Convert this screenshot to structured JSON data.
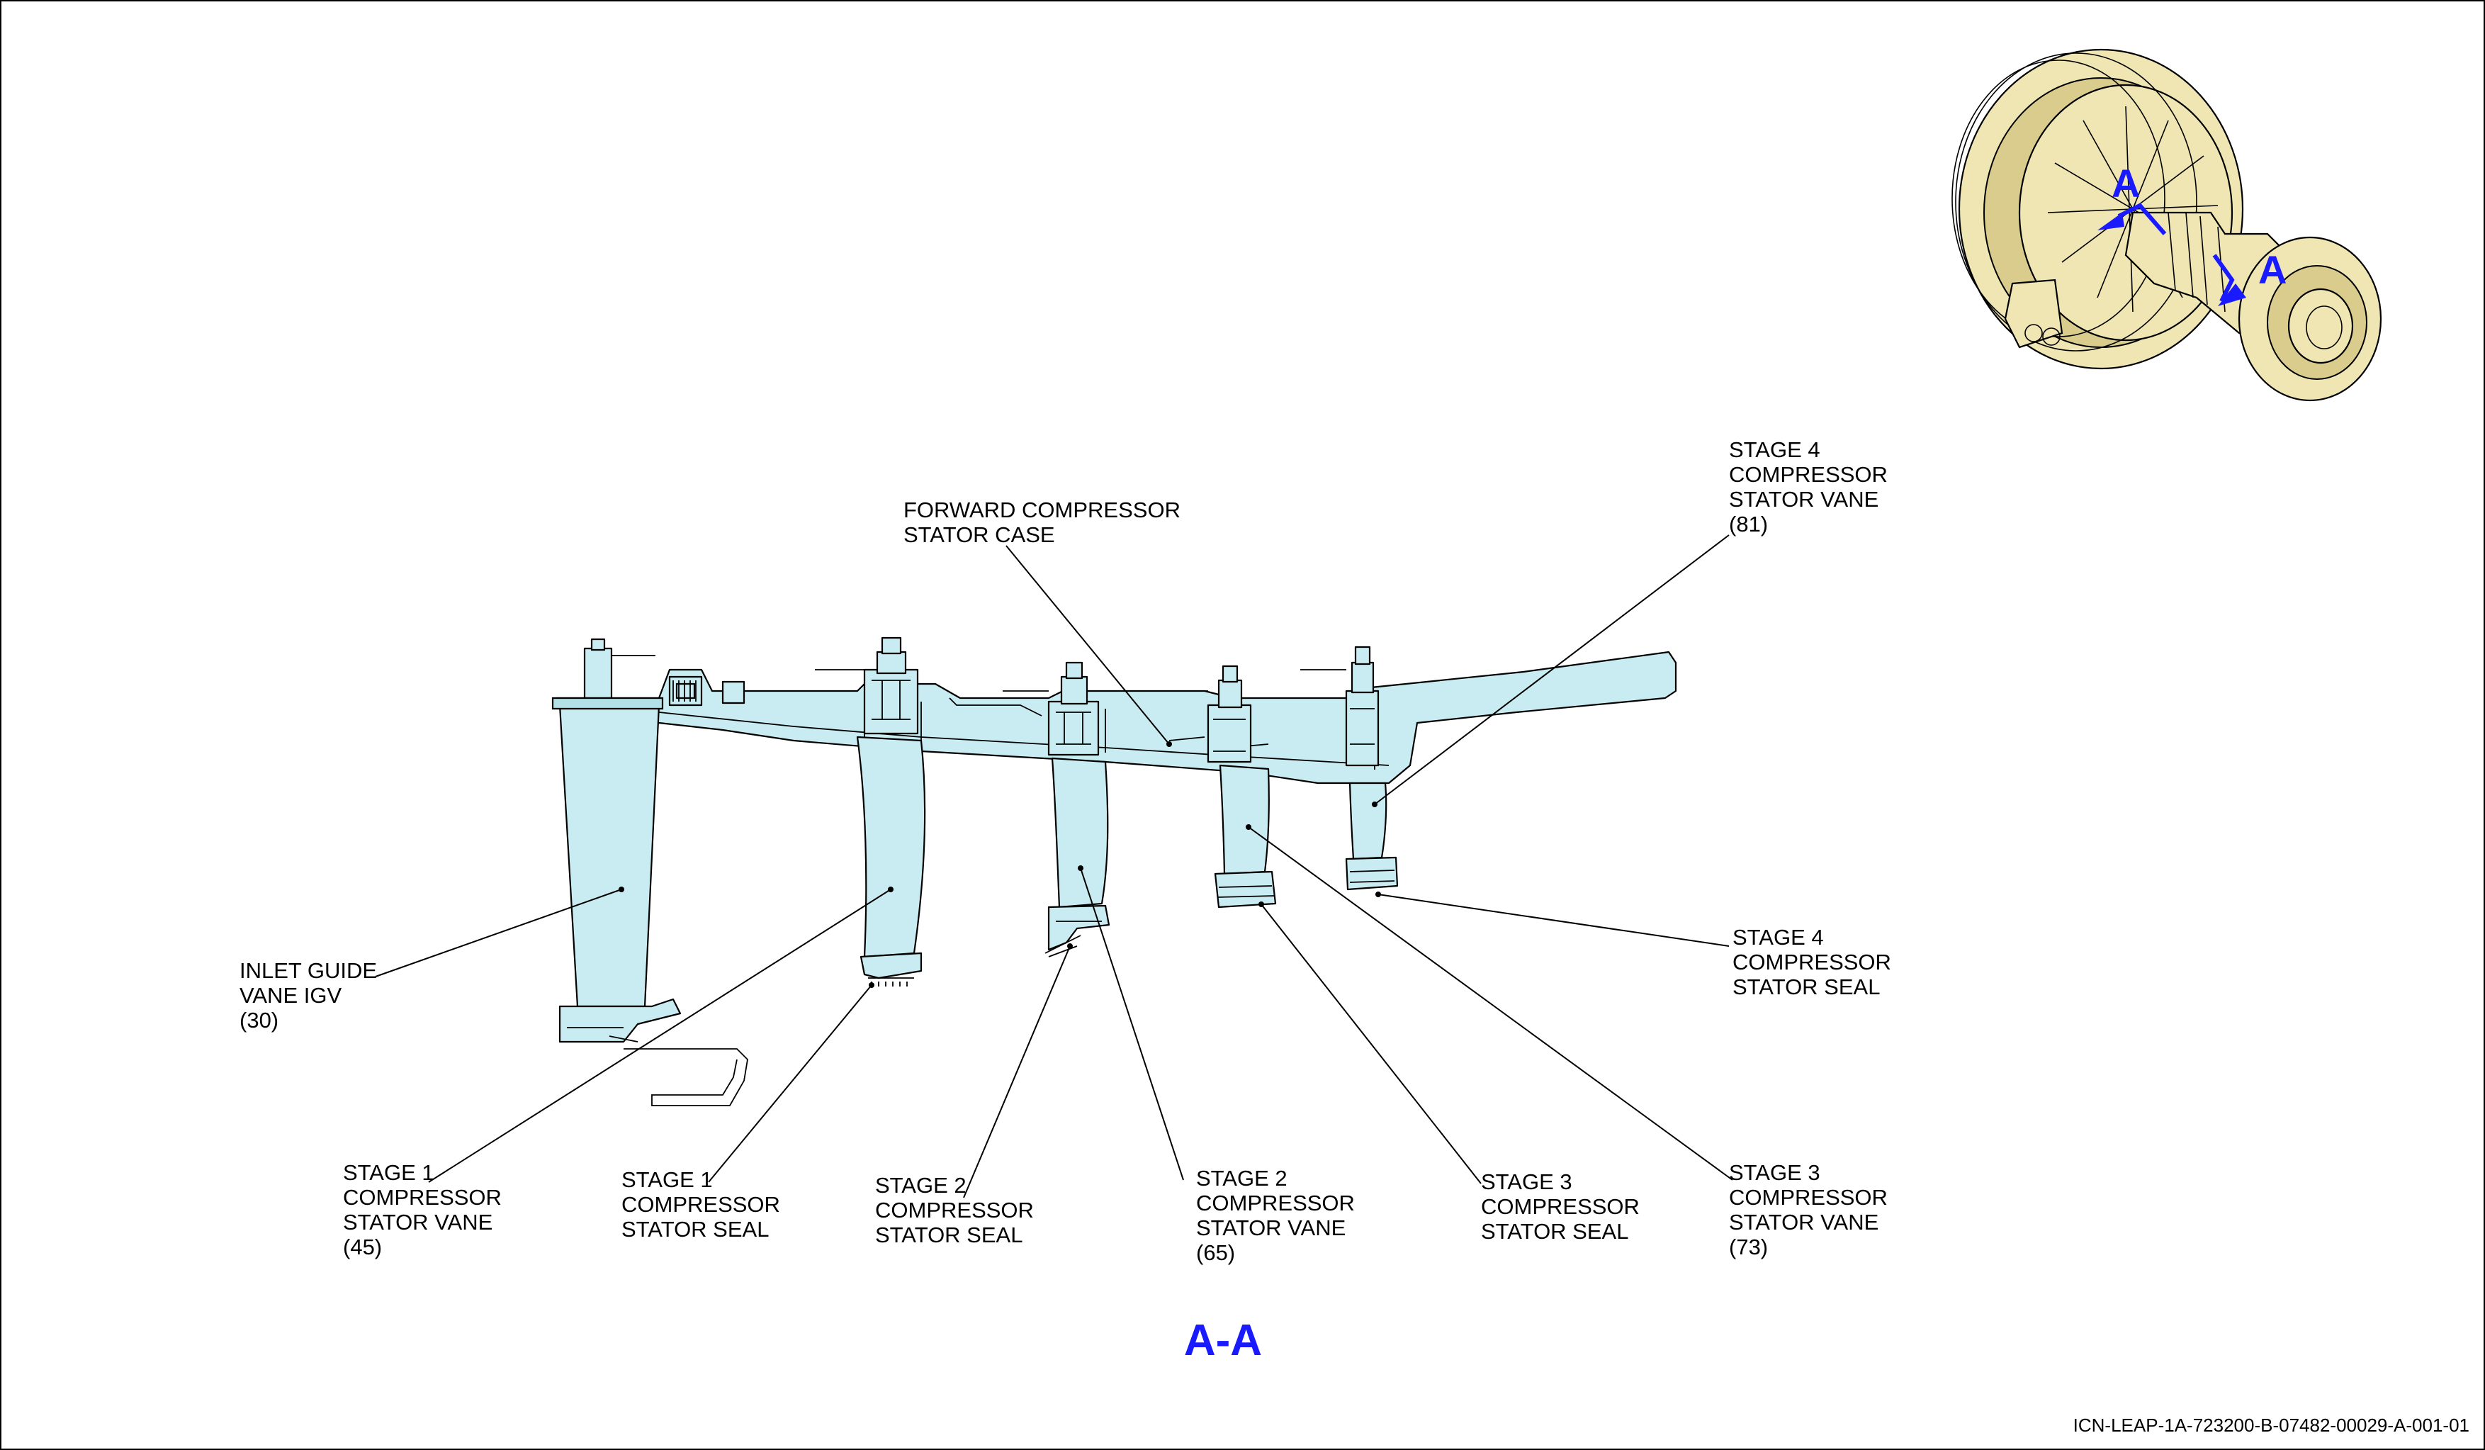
{
  "section_view": {
    "title": "A-A",
    "view_marker": "A"
  },
  "callouts": {
    "inlet_guide_vane": [
      "INLET GUIDE",
      "VANE IGV",
      "(30)"
    ],
    "forward_case": [
      "FORWARD COMPRESSOR",
      "STATOR CASE"
    ],
    "stage4_vane": [
      "STAGE 4",
      "COMPRESSOR",
      "STATOR VANE",
      "(81)"
    ],
    "stage4_seal": [
      "STAGE 4",
      "COMPRESSOR",
      "STATOR SEAL"
    ],
    "stage1_vane": [
      "STAGE 1",
      "COMPRESSOR",
      "STATOR VANE",
      "(45)"
    ],
    "stage1_seal": [
      "STAGE 1",
      "COMPRESSOR",
      "STATOR SEAL"
    ],
    "stage2_seal": [
      "STAGE 2",
      "COMPRESSOR",
      "STATOR SEAL"
    ],
    "stage2_vane": [
      "STAGE 2",
      "COMPRESSOR",
      "STATOR VANE",
      "(65)"
    ],
    "stage3_seal": [
      "STAGE 3",
      "COMPRESSOR",
      "STATOR SEAL"
    ],
    "stage3_vane": [
      "STAGE 3",
      "COMPRESSOR",
      "STATOR VANE",
      "(73)"
    ]
  },
  "footer": {
    "icn": "ICN-LEAP-1A-723200-B-07482-00029-A-001-01"
  },
  "colors": {
    "part_fill": "#c8ecf1",
    "engine_fill": "#efe6b4",
    "section_blue": "#1a1aff"
  }
}
